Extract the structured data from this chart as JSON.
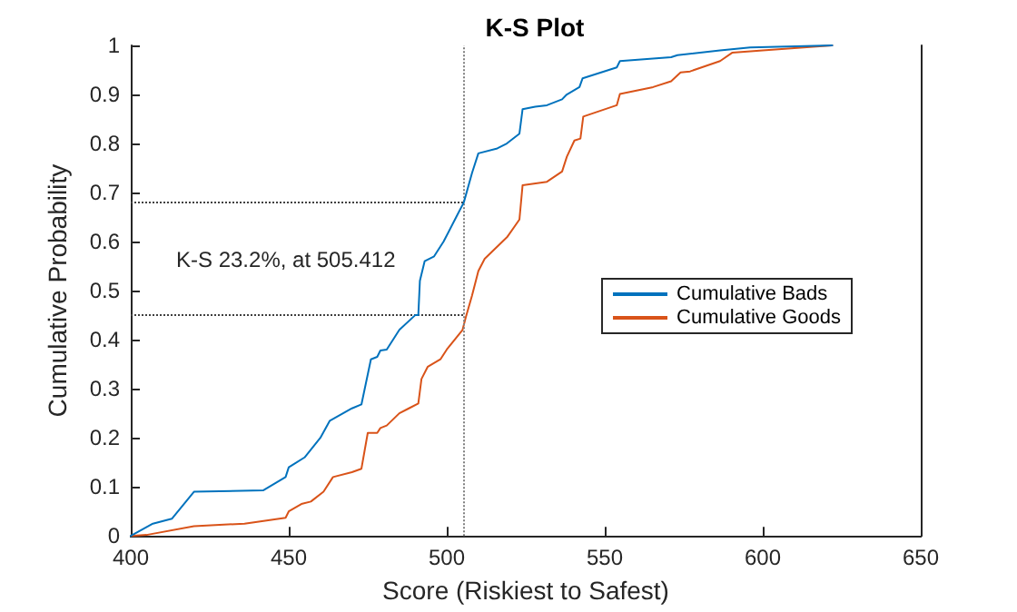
{
  "chart_data": {
    "type": "line",
    "title": "K-S Plot",
    "xlabel": "Score (Riskiest to Safest)",
    "ylabel": "Cumulative Probability",
    "xlim": [
      400,
      650
    ],
    "xticks": [
      400,
      450,
      500,
      550,
      600,
      650
    ],
    "ylim": [
      0,
      1
    ],
    "yticks": [
      0,
      0.1,
      0.2,
      0.3,
      0.4,
      0.5,
      0.6,
      0.7,
      0.8,
      0.9,
      1
    ],
    "grid": false,
    "legend": "right",
    "marker": "none",
    "line_style": "solid",
    "annotations": [
      "K-S 23.2%, at 505.412"
    ],
    "ref_lines": [
      {
        "axis": "x",
        "value": 505.412,
        "color": "#808080",
        "line_style": "dotted"
      },
      {
        "axis": "y",
        "value": 0.68,
        "color": "#404040",
        "line_style": "dotted"
      },
      {
        "axis": "y",
        "value": 0.45,
        "color": "#404040",
        "line_style": "dotted"
      }
    ],
    "series": [
      {
        "name": "Cumulative Bads",
        "color": "#0072bd",
        "x": [
          400,
          407,
          413,
          420,
          442,
          449,
          450,
          455,
          460,
          463,
          470,
          473,
          476,
          478,
          479,
          481,
          485,
          490,
          491,
          491.5,
          493,
          496,
          499,
          503,
          505.4,
          508,
          510,
          516,
          519,
          523,
          524,
          528,
          531.7,
          536.5,
          538,
          542,
          543,
          553.8,
          554.8,
          571,
          573,
          586.5,
          596,
          622
        ],
        "values": [
          0,
          0.025,
          0.035,
          0.09,
          0.093,
          0.12,
          0.14,
          0.16,
          0.2,
          0.235,
          0.26,
          0.268,
          0.36,
          0.365,
          0.378,
          0.38,
          0.42,
          0.45,
          0.45,
          0.52,
          0.56,
          0.57,
          0.6,
          0.65,
          0.68,
          0.74,
          0.78,
          0.79,
          0.8,
          0.82,
          0.87,
          0.875,
          0.878,
          0.89,
          0.9,
          0.915,
          0.933,
          0.955,
          0.968,
          0.976,
          0.98,
          0.99,
          0.996,
          1
        ]
      },
      {
        "name": "Cumulative Goods",
        "color": "#d95319",
        "x": [
          400,
          405,
          420,
          436,
          449,
          450,
          454,
          457,
          461,
          464,
          470,
          473,
          475,
          478,
          479,
          481,
          485,
          488,
          491,
          492,
          494,
          498,
          500,
          505,
          506,
          508,
          510,
          512,
          519.2,
          523,
          524,
          531.7,
          536.5,
          538,
          540.4,
          542.3,
          543.2,
          553.8,
          554.8,
          565.3,
          571,
          574,
          577,
          586.5,
          590.3,
          600,
          622
        ],
        "values": [
          0,
          0.002,
          0.02,
          0.025,
          0.037,
          0.05,
          0.065,
          0.07,
          0.09,
          0.12,
          0.13,
          0.137,
          0.21,
          0.21,
          0.22,
          0.225,
          0.25,
          0.26,
          0.27,
          0.32,
          0.345,
          0.36,
          0.38,
          0.42,
          0.445,
          0.49,
          0.54,
          0.565,
          0.61,
          0.645,
          0.715,
          0.722,
          0.743,
          0.773,
          0.806,
          0.81,
          0.855,
          0.878,
          0.901,
          0.915,
          0.927,
          0.945,
          0.947,
          0.968,
          0.985,
          0.99,
          1
        ]
      }
    ]
  }
}
